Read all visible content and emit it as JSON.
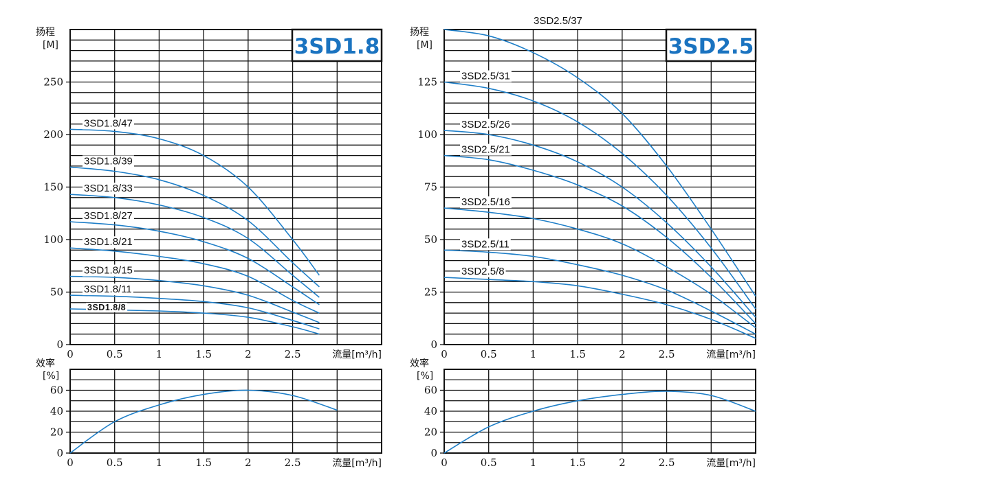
{
  "chart_data": [
    {
      "id": "3sd18",
      "type": "line",
      "badge": "3SD1.8",
      "head": {
        "ylabel": "扬程",
        "yunit": "[M]",
        "xlabel": "流量[m³/h]",
        "xlim": [
          0,
          3.5
        ],
        "ylim": [
          0,
          300
        ],
        "xticks": [
          "0",
          "0.5",
          "1",
          "1.5",
          "2",
          "2.5"
        ],
        "yticks": [
          "0",
          "50",
          "100",
          "150",
          "200",
          "250"
        ],
        "series": [
          {
            "name": "3SD1.8/47",
            "x": [
              0,
              0.5,
              1,
              1.5,
              2,
              2.5,
              2.8
            ],
            "y": [
              205,
              203,
              196,
              180,
              150,
              100,
              66
            ]
          },
          {
            "name": "3SD1.8/39",
            "x": [
              0,
              0.5,
              1,
              1.5,
              2,
              2.5,
              2.8
            ],
            "y": [
              169,
              165,
              157,
              142,
              118,
              78,
              55
            ]
          },
          {
            "name": "3SD1.8/33",
            "x": [
              0,
              0.5,
              1,
              1.5,
              2,
              2.5,
              2.8
            ],
            "y": [
              143,
              140,
              133,
              121,
              101,
              66,
              45
            ]
          },
          {
            "name": "3SD1.8/27",
            "x": [
              0,
              0.5,
              1,
              1.5,
              2,
              2.5,
              2.8
            ],
            "y": [
              117,
              114,
              108,
              98,
              82,
              55,
              38
            ]
          },
          {
            "name": "3SD1.8/21",
            "x": [
              0,
              0.5,
              1,
              1.5,
              2,
              2.5,
              2.8
            ],
            "y": [
              92,
              89,
              84,
              77,
              65,
              42,
              30
            ]
          },
          {
            "name": "3SD1.8/15",
            "x": [
              0,
              0.5,
              1,
              1.5,
              2,
              2.5,
              2.8
            ],
            "y": [
              65,
              64,
              61,
              56,
              47,
              31,
              21
            ]
          },
          {
            "name": "3SD1.8/11",
            "x": [
              0,
              0.5,
              1,
              1.5,
              2,
              2.5,
              2.8
            ],
            "y": [
              47,
              46,
              44,
              41,
              35,
              23,
              15
            ]
          },
          {
            "name": "3SD1.8/8",
            "x": [
              0,
              0.5,
              1,
              1.5,
              2,
              2.5,
              2.8
            ],
            "y": [
              34,
              33,
              32,
              30,
              26,
              17,
              10
            ]
          }
        ]
      },
      "efficiency": {
        "ylabel": "效率",
        "yunit": "[%]",
        "xlabel": "流量[m³/h]",
        "xlim": [
          0,
          3.5
        ],
        "ylim": [
          0,
          80
        ],
        "xticks": [
          "0",
          "0.5",
          "1",
          "1.5",
          "2",
          "2.5"
        ],
        "yticks": [
          "0",
          "20",
          "40",
          "60"
        ],
        "series": [
          {
            "x": [
              0,
              0.5,
              1,
              1.5,
              2,
              2.5,
              3
            ],
            "y": [
              0,
              30,
              46,
              56,
              60,
              55,
              41
            ]
          }
        ]
      }
    },
    {
      "id": "3sd25",
      "type": "line",
      "badge": "3SD2.5",
      "head": {
        "ylabel": "扬程",
        "yunit": "[M]",
        "xlabel": "流量[m³/h]",
        "xlim": [
          0,
          3.5
        ],
        "ylim": [
          0,
          150
        ],
        "xticks": [
          "0",
          "0.5",
          "1",
          "1.5",
          "2",
          "2.5"
        ],
        "yticks": [
          "0",
          "25",
          "50",
          "75",
          "100",
          "125"
        ],
        "series": [
          {
            "name": "3SD2.5/37",
            "x": [
              0,
              0.5,
              1,
              1.5,
              2,
              2.5,
              3,
              3.5
            ],
            "y": [
              150,
              147,
              139,
              127,
              110,
              85,
              55,
              23
            ]
          },
          {
            "name": "3SD2.5/31",
            "x": [
              0,
              0.5,
              1,
              1.5,
              2,
              2.5,
              3,
              3.5
            ],
            "y": [
              125,
              122,
              116,
              106,
              91,
              71,
              46,
              17
            ]
          },
          {
            "name": "3SD2.5/26",
            "x": [
              0,
              0.5,
              1,
              1.5,
              2,
              2.5,
              3,
              3.5
            ],
            "y": [
              102,
              100,
              95,
              87,
              75,
              58,
              37,
              13
            ]
          },
          {
            "name": "3SD2.5/21",
            "x": [
              0,
              0.5,
              1,
              1.5,
              2,
              2.5,
              3,
              3.5
            ],
            "y": [
              90,
              88,
              83,
              76,
              66,
              51,
              32,
              10
            ]
          },
          {
            "name": "3SD2.5/16",
            "x": [
              0,
              0.5,
              1,
              1.5,
              2,
              2.5,
              3,
              3.5
            ],
            "y": [
              65,
              63,
              60,
              55,
              48,
              37,
              24,
              8
            ]
          },
          {
            "name": "3SD2.5/11",
            "x": [
              0,
              0.5,
              1,
              1.5,
              2,
              2.5,
              3,
              3.5
            ],
            "y": [
              45,
              44,
              42,
              38,
              33,
              26,
              16,
              5
            ]
          },
          {
            "name": "3SD2.5/8",
            "x": [
              0,
              0.5,
              1,
              1.5,
              2,
              2.5,
              3,
              3.5
            ],
            "y": [
              32,
              31,
              30,
              28,
              24,
              19,
              12,
              3
            ]
          }
        ]
      },
      "efficiency": {
        "ylabel": "效率",
        "yunit": "[%]",
        "xlabel": "流量[m³/h]",
        "xlim": [
          0,
          3.5
        ],
        "ylim": [
          0,
          80
        ],
        "xticks": [
          "0",
          "0.5",
          "1",
          "1.5",
          "2",
          "2.5"
        ],
        "yticks": [
          "0",
          "20",
          "40",
          "60"
        ],
        "series": [
          {
            "x": [
              0,
              0.5,
              1,
              1.5,
              2,
              2.5,
              3,
              3.5
            ],
            "y": [
              0,
              25,
              40,
              50,
              56,
              59,
              55,
              40
            ]
          }
        ]
      }
    }
  ]
}
